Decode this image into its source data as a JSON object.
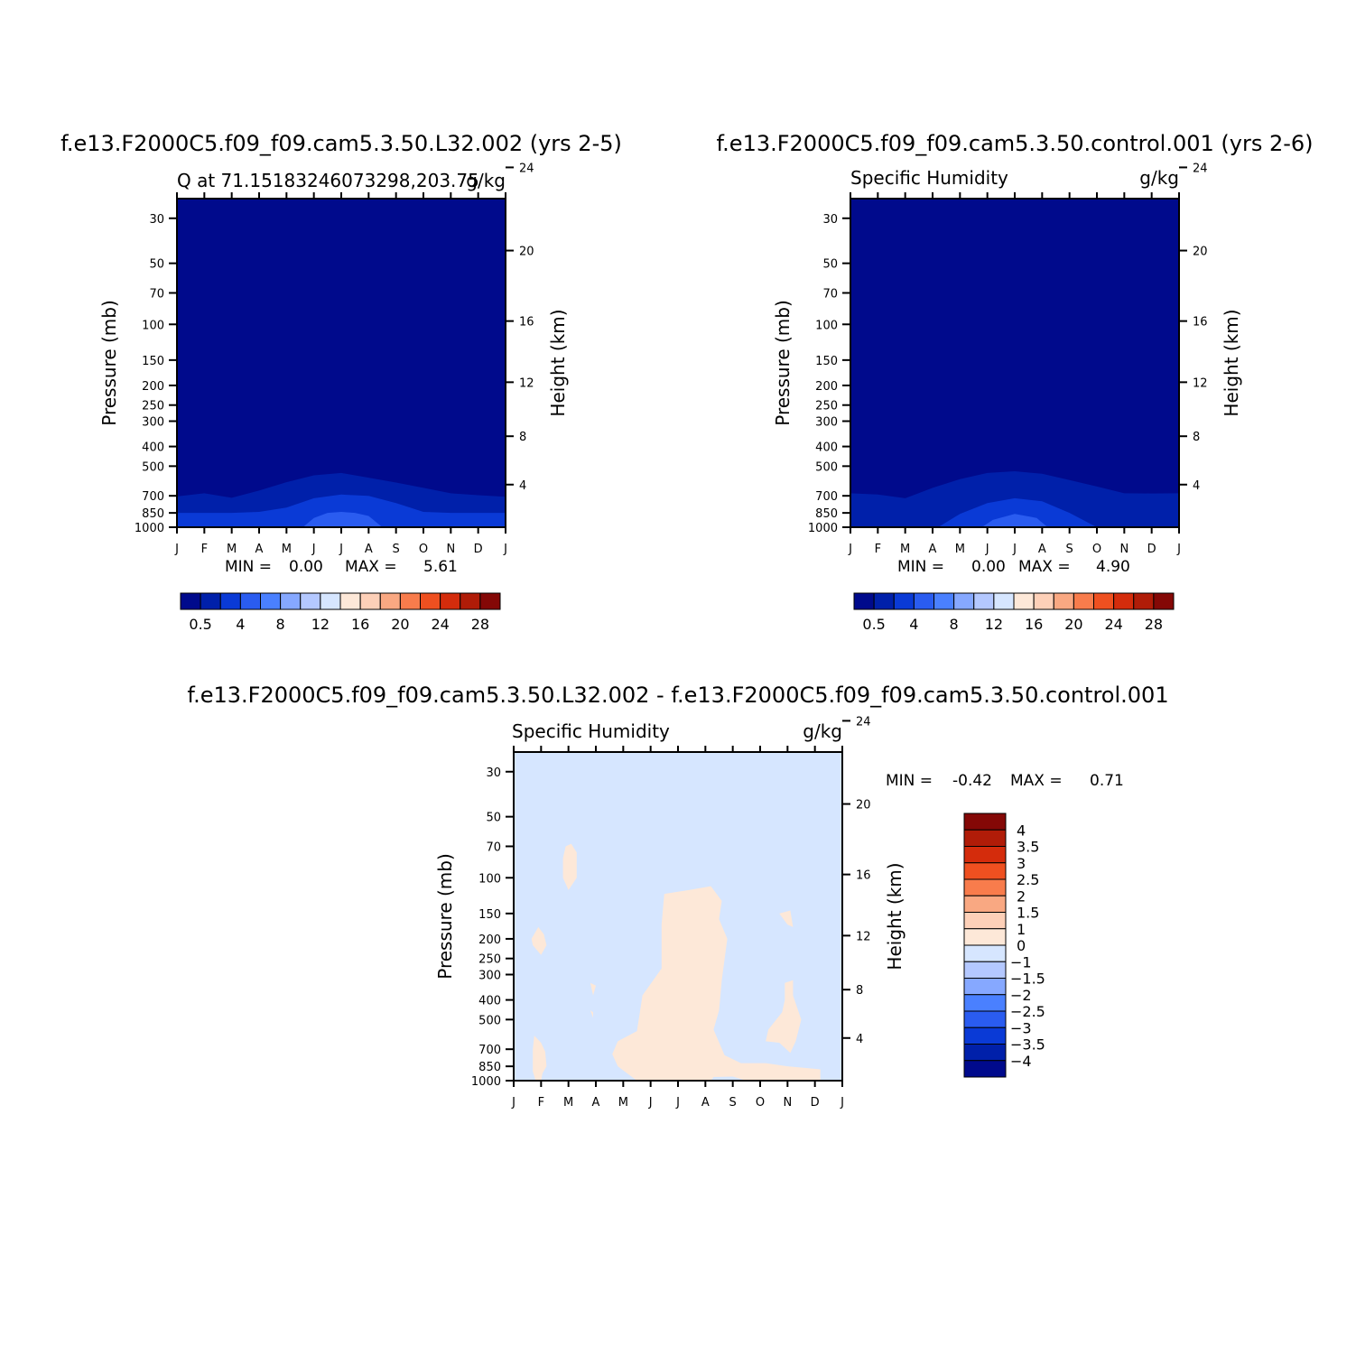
{
  "chart_data": [
    {
      "type": "heatmap",
      "title": "f.e13.F2000C5.f09_f09.cam5.3.50.L32.002 (yrs 2-5)",
      "subtitle_left": "Q at 71.15183246073298,203.75",
      "subtitle_right": "g/kg",
      "ylabel": "Pressure (mb)",
      "ylabel_right": "Height (km)",
      "x_ticks": [
        "J",
        "F",
        "M",
        "A",
        "M",
        "J",
        "J",
        "A",
        "S",
        "O",
        "N",
        "D",
        "J"
      ],
      "y_ticks": [
        "30",
        "50",
        "70",
        "100",
        "150",
        "200",
        "250",
        "300",
        "400",
        "500",
        "700",
        "850",
        "1000"
      ],
      "y_right_ticks": [
        "24",
        "20",
        "16",
        "12",
        "8",
        "4"
      ],
      "stats": {
        "min_label": "MIN =",
        "min": "0.00",
        "max_label": "MAX =",
        "max": "5.61"
      },
      "colorbar": {
        "colors": [
          "#000a8c",
          "#0020aa",
          "#0a3ad6",
          "#2a5cf0",
          "#4a80ff",
          "#86a8ff",
          "#b4c8ff",
          "#d6e6ff",
          "#fde8d8",
          "#fdd0b8",
          "#f9a882",
          "#f87c4c",
          "#ef5020",
          "#d42c0c",
          "#b01c08",
          "#840806"
        ],
        "labels": [
          "0.5",
          "4",
          "8",
          "12",
          "16",
          "20",
          "24",
          "28"
        ]
      },
      "contours": [
        {
          "level": "0.5-1",
          "profile": [
            [
              0,
              705
            ],
            [
              1,
              680
            ],
            [
              2,
              716
            ],
            [
              3,
              660
            ],
            [
              4,
              600
            ],
            [
              5,
              555
            ],
            [
              6,
              540
            ],
            [
              7,
              570
            ],
            [
              8,
              602
            ],
            [
              9,
              640
            ],
            [
              10,
              680
            ],
            [
              11,
              695
            ],
            [
              12,
              708
            ]
          ]
        },
        {
          "level": "1-2",
          "profile": [
            [
              0,
              850
            ],
            [
              1,
              850
            ],
            [
              2,
              850
            ],
            [
              3,
              840
            ],
            [
              4,
              800
            ],
            [
              5,
              720
            ],
            [
              6,
              690
            ],
            [
              7,
              700
            ],
            [
              8,
              760
            ],
            [
              9,
              840
            ],
            [
              10,
              850
            ],
            [
              11,
              850
            ],
            [
              12,
              850
            ]
          ]
        },
        {
          "level": "2-3",
          "profile": [
            [
              4.6,
              1000
            ],
            [
              5,
              900
            ],
            [
              5.5,
              850
            ],
            [
              6,
              840
            ],
            [
              6.5,
              850
            ],
            [
              7,
              880
            ],
            [
              7.5,
              1000
            ]
          ]
        }
      ]
    },
    {
      "type": "heatmap",
      "title": "f.e13.F2000C5.f09_f09.cam5.3.50.control.001 (yrs 2-6)",
      "subtitle_left": "Specific Humidity",
      "subtitle_right": "g/kg",
      "ylabel": "Pressure (mb)",
      "ylabel_right": "Height (km)",
      "x_ticks": [
        "J",
        "F",
        "M",
        "A",
        "M",
        "J",
        "J",
        "A",
        "S",
        "O",
        "N",
        "D",
        "J"
      ],
      "y_ticks": [
        "30",
        "50",
        "70",
        "100",
        "150",
        "200",
        "250",
        "300",
        "400",
        "500",
        "700",
        "850",
        "1000"
      ],
      "y_right_ticks": [
        "24",
        "20",
        "16",
        "12",
        "8",
        "4"
      ],
      "stats": {
        "min_label": "MIN =",
        "min": "0.00",
        "max_label": "MAX =",
        "max": "4.90"
      },
      "colorbar": {
        "colors": [
          "#000a8c",
          "#0020aa",
          "#0a3ad6",
          "#2a5cf0",
          "#4a80ff",
          "#86a8ff",
          "#b4c8ff",
          "#d6e6ff",
          "#fde8d8",
          "#fdd0b8",
          "#f9a882",
          "#f87c4c",
          "#ef5020",
          "#d42c0c",
          "#b01c08",
          "#840806"
        ],
        "labels": [
          "0.5",
          "4",
          "8",
          "12",
          "16",
          "20",
          "24",
          "28"
        ]
      },
      "contours": [
        {
          "level": "0.5-1",
          "profile": [
            [
              0,
              680
            ],
            [
              1,
              690
            ],
            [
              2,
              720
            ],
            [
              3,
              640
            ],
            [
              4,
              580
            ],
            [
              5,
              540
            ],
            [
              6,
              530
            ],
            [
              7,
              545
            ],
            [
              8,
              585
            ],
            [
              9,
              630
            ],
            [
              10,
              680
            ],
            [
              11,
              682
            ],
            [
              12,
              680
            ]
          ]
        },
        {
          "level": "1-2",
          "profile": [
            [
              0,
              1000
            ],
            [
              3.2,
              1000
            ],
            [
              4,
              860
            ],
            [
              5,
              760
            ],
            [
              6,
              720
            ],
            [
              7,
              745
            ],
            [
              8,
              850
            ],
            [
              9,
              1000
            ],
            [
              12,
              1000
            ]
          ]
        },
        {
          "level": "2-3",
          "profile": [
            [
              4.8,
              1000
            ],
            [
              5.2,
              920
            ],
            [
              6,
              860
            ],
            [
              6.8,
              900
            ],
            [
              7.2,
              1000
            ]
          ]
        }
      ]
    },
    {
      "type": "heatmap",
      "title": "f.e13.F2000C5.f09_f09.cam5.3.50.L32.002 - f.e13.F2000C5.f09_f09.cam5.3.50.control.001",
      "subtitle_left": "Specific Humidity",
      "subtitle_right": "g/kg",
      "ylabel": "Pressure (mb)",
      "ylabel_right": "Height (km)",
      "x_ticks": [
        "J",
        "F",
        "M",
        "A",
        "M",
        "J",
        "J",
        "A",
        "S",
        "O",
        "N",
        "D",
        "J"
      ],
      "y_ticks": [
        "30",
        "50",
        "70",
        "100",
        "150",
        "200",
        "250",
        "300",
        "400",
        "500",
        "700",
        "850",
        "1000"
      ],
      "y_right_ticks": [
        "24",
        "20",
        "16",
        "12",
        "8",
        "4"
      ],
      "stats": {
        "min_label": "MIN =",
        "min": "-0.42",
        "max_label": "MAX =",
        "max": "0.71"
      },
      "colorbar": {
        "colors": [
          "#000a8c",
          "#0020aa",
          "#0a3ad6",
          "#2a5cf0",
          "#4a80ff",
          "#86a8ff",
          "#b4c8ff",
          "#d6e6ff",
          "#fde8d8",
          "#fdd0b8",
          "#f9a882",
          "#f87c4c",
          "#ef5020",
          "#d42c0c",
          "#b01c08",
          "#840806"
        ],
        "labels": [
          "4",
          "3.5",
          "3",
          "2.5",
          "2",
          "1.5",
          "1",
          "0",
          "-1",
          "-1.5",
          "-2",
          "-2.5",
          "-3",
          "-3.5",
          "-4"
        ]
      },
      "positive_regions": [
        [
          [
            1.9,
            70
          ],
          [
            2.1,
            68
          ],
          [
            2.3,
            75
          ],
          [
            2.3,
            100
          ],
          [
            2.0,
            115
          ],
          [
            1.8,
            100
          ],
          [
            1.8,
            80
          ]
        ],
        [
          [
            0.9,
            175
          ],
          [
            1.1,
            190
          ],
          [
            1.2,
            215
          ],
          [
            1.0,
            240
          ],
          [
            0.7,
            215
          ],
          [
            0.65,
            200
          ]
        ],
        [
          [
            0.75,
            600
          ],
          [
            1.0,
            650
          ],
          [
            1.15,
            720
          ],
          [
            1.2,
            850
          ],
          [
            1.05,
            920
          ],
          [
            1.0,
            1000
          ],
          [
            0.8,
            1000
          ],
          [
            0.7,
            900
          ],
          [
            0.7,
            700
          ]
        ],
        [
          [
            5.5,
            120
          ],
          [
            6.4,
            115
          ],
          [
            7.2,
            110
          ],
          [
            7.6,
            130
          ],
          [
            7.5,
            160
          ],
          [
            7.8,
            200
          ],
          [
            7.6,
            320
          ],
          [
            7.5,
            450
          ],
          [
            7.3,
            560
          ],
          [
            7.7,
            750
          ],
          [
            8.3,
            820
          ],
          [
            9.2,
            820
          ],
          [
            10.0,
            850
          ],
          [
            11.2,
            880
          ],
          [
            11.2,
            1000
          ],
          [
            8.5,
            1000
          ],
          [
            8.0,
            955
          ],
          [
            7.3,
            960
          ],
          [
            7.2,
            1000
          ],
          [
            4.5,
            1000
          ],
          [
            3.8,
            850
          ],
          [
            3.6,
            740
          ],
          [
            3.8,
            640
          ],
          [
            4.5,
            570
          ],
          [
            4.6,
            470
          ],
          [
            4.7,
            380
          ],
          [
            5.4,
            280
          ],
          [
            5.4,
            170
          ]
        ],
        [
          [
            9.7,
            150
          ],
          [
            10.1,
            145
          ],
          [
            10.2,
            175
          ],
          [
            10.0,
            170
          ]
        ],
        [
          [
            2.8,
            330
          ],
          [
            3.0,
            340
          ],
          [
            2.9,
            380
          ]
        ],
        [
          [
            2.8,
            450
          ],
          [
            2.9,
            460
          ],
          [
            2.9,
            490
          ]
        ],
        [
          [
            9.9,
            330
          ],
          [
            10.2,
            320
          ],
          [
            10.2,
            380
          ],
          [
            10.5,
            500
          ],
          [
            10.3,
            640
          ],
          [
            10.1,
            730
          ],
          [
            9.7,
            650
          ],
          [
            9.2,
            640
          ],
          [
            9.3,
            560
          ],
          [
            9.8,
            460
          ],
          [
            9.9,
            400
          ]
        ]
      ]
    }
  ]
}
